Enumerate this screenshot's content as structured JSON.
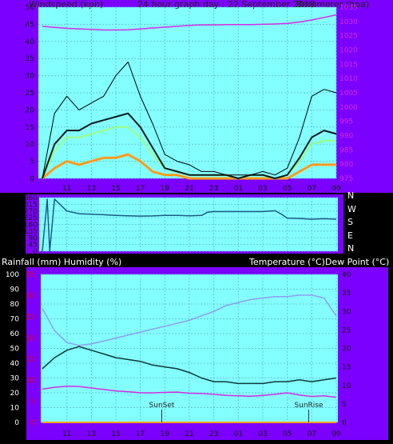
{
  "header": {
    "left_label": "Windspeed (kph)",
    "title": "24 hour graph day : 22 September 2018",
    "right_label": "Barometer (hpa)"
  },
  "middle": {
    "compass_labels": [
      "N",
      "W",
      "S",
      "E",
      "N"
    ]
  },
  "bottom": {
    "left_label": "Rainfall (mm)  Humidity (%)",
    "right_label": "Temperature (°C)Dew Point (°C)",
    "sunset_label": "SunSet",
    "sunrise_label": "SunRise"
  },
  "colors": {
    "frame": "#7B00FF",
    "plot_bg": "#84FFFF",
    "grid": "#5FC7D9",
    "gust": "#000000",
    "wind_avg": "#9BFF7F",
    "wind_orange": "#FF9A1A",
    "barometer": "#D52CE0",
    "direction": "#1C5A86",
    "temperature": "#0B3A35",
    "humidity": "#8E9DF2",
    "dewpoint": "#D52CE0",
    "rain": "#FFA500",
    "axis_text_dark": "#1A1A1A",
    "axis_text_red": "#E0001A"
  },
  "chart_data": [
    {
      "id": "wind_baro",
      "type": "line",
      "xlabel": "",
      "x_ticks": [
        "11",
        "13",
        "15",
        "17",
        "19",
        "21",
        "23",
        "01",
        "03",
        "05",
        "07",
        "09"
      ],
      "y_left_label": "Windspeed (kph)",
      "y_left_ticks": [
        0,
        5,
        10,
        15,
        20,
        25,
        30,
        35,
        40,
        45,
        50
      ],
      "y_left_range": [
        0,
        50
      ],
      "y_right_label": "Barometer (hpa)",
      "y_right_ticks": [
        975,
        980,
        985,
        990,
        995,
        1000,
        1005,
        1010,
        1015,
        1020,
        1025,
        1030,
        1035
      ],
      "y_right_range": [
        975,
        1035
      ],
      "x_hours": [
        9,
        10,
        11,
        12,
        13,
        14,
        15,
        16,
        17,
        18,
        19,
        20,
        21,
        22,
        23,
        24,
        25,
        26,
        27,
        28,
        29,
        30,
        31,
        32,
        33
      ],
      "gust_max": [
        0,
        19,
        24,
        20,
        22,
        24,
        30,
        34,
        24,
        16,
        7,
        5,
        4,
        2,
        2,
        1,
        1,
        1,
        2,
        1,
        3,
        12,
        24,
        26,
        25
      ],
      "gust_avg": [
        0,
        10,
        14,
        14,
        16,
        17,
        18,
        19,
        15,
        9,
        3,
        2,
        1,
        1,
        1,
        1,
        0,
        1,
        1,
        0,
        1,
        6,
        12,
        14,
        13
      ],
      "wind_avg": [
        0,
        8,
        12,
        12,
        13,
        14,
        15,
        15,
        12,
        7,
        3,
        2,
        1,
        1,
        1,
        1,
        0,
        1,
        1,
        0,
        1,
        5,
        10,
        11,
        11
      ],
      "wind_lower": [
        0,
        3,
        5,
        4,
        5,
        6,
        6,
        7,
        5,
        2,
        1,
        1,
        0,
        0,
        0,
        0,
        0,
        0,
        0,
        0,
        0,
        2,
        4,
        4,
        4
      ],
      "barometer": [
        1028.3,
        1027.9,
        1027.6,
        1027.4,
        1027.2,
        1027.0,
        1027.0,
        1027.1,
        1027.4,
        1027.7,
        1028.0,
        1028.3,
        1028.6,
        1028.8,
        1028.8,
        1028.9,
        1028.9,
        1028.9,
        1029.0,
        1029.1,
        1029.3,
        1029.8,
        1030.5,
        1031.4,
        1032.3
      ]
    },
    {
      "id": "wind_direction",
      "type": "line",
      "y_ticks": [
        0,
        45,
        90,
        135,
        180,
        225,
        270,
        315,
        360
      ],
      "y_range": [
        0,
        360
      ],
      "compass_labels": [
        "N",
        "W",
        "S",
        "E",
        "N"
      ],
      "x_hours": [
        9,
        9.4,
        9.6,
        10,
        11,
        12,
        13,
        14,
        15,
        16,
        17,
        18,
        19,
        20,
        21,
        22,
        22.5,
        23,
        24,
        25,
        26,
        27,
        28,
        28.5,
        29,
        30,
        31,
        32,
        33
      ],
      "direction": [
        0,
        350,
        0,
        350,
        270,
        252,
        248,
        245,
        240,
        238,
        236,
        237,
        240,
        240,
        238,
        240,
        262,
        266,
        266,
        266,
        266,
        266,
        272,
        250,
        222,
        220,
        215,
        218,
        215
      ]
    },
    {
      "id": "temp_hum_rain",
      "type": "line",
      "x_ticks": [
        "11",
        "13",
        "15",
        "17",
        "19",
        "21",
        "23",
        "01",
        "03",
        "05",
        "07",
        "09"
      ],
      "y_left_label": "Rainfall (mm)  Humidity (%)",
      "y_left_ticks": [
        0,
        10,
        20,
        30,
        40,
        50,
        60,
        70,
        80,
        90,
        100
      ],
      "y_left_range": [
        0,
        100
      ],
      "rain_ticks": [
        0,
        5,
        10,
        15,
        20,
        25,
        30,
        35
      ],
      "rain_range": [
        0,
        35
      ],
      "y_right_label": "Temperature (°C)Dew Point (°C)",
      "y_right_ticks": [
        0,
        5,
        10,
        15,
        20,
        25,
        30,
        35,
        40
      ],
      "y_right_range": [
        0,
        40
      ],
      "x_hours": [
        9,
        10,
        11,
        12,
        13,
        14,
        15,
        16,
        17,
        18,
        19,
        20,
        21,
        22,
        23,
        24,
        25,
        26,
        27,
        28,
        29,
        30,
        31,
        32,
        33
      ],
      "temperature": [
        14.5,
        17.5,
        19.5,
        20.5,
        19.5,
        18.5,
        17.5,
        17.0,
        16.5,
        15.5,
        15.0,
        14.5,
        13.5,
        12.0,
        11.0,
        11.0,
        10.5,
        10.5,
        10.5,
        11.0,
        11.0,
        11.5,
        11.0,
        11.5,
        12.0
      ],
      "humidity": [
        77,
        62,
        54,
        52,
        53,
        55,
        57,
        59,
        61,
        63,
        65,
        67,
        69,
        72,
        75,
        79,
        81,
        83,
        84,
        85,
        85,
        86,
        86,
        84,
        72
      ],
      "dewpoint": [
        9.0,
        9.5,
        9.8,
        9.7,
        9.3,
        8.9,
        8.5,
        8.3,
        8.0,
        8.0,
        8.1,
        8.2,
        7.9,
        7.8,
        7.6,
        7.3,
        7.2,
        7.1,
        7.3,
        7.6,
        8.0,
        7.4,
        7.0,
        7.2,
        6.8
      ],
      "rainfall": [
        0,
        0,
        0,
        0,
        0,
        0,
        0,
        0,
        0,
        0,
        0,
        0,
        0,
        0,
        0,
        0,
        0,
        0,
        0,
        0,
        0,
        0,
        0,
        0,
        0
      ],
      "sunset_hour": 18.75,
      "sunrise_hour": 30.75
    }
  ]
}
